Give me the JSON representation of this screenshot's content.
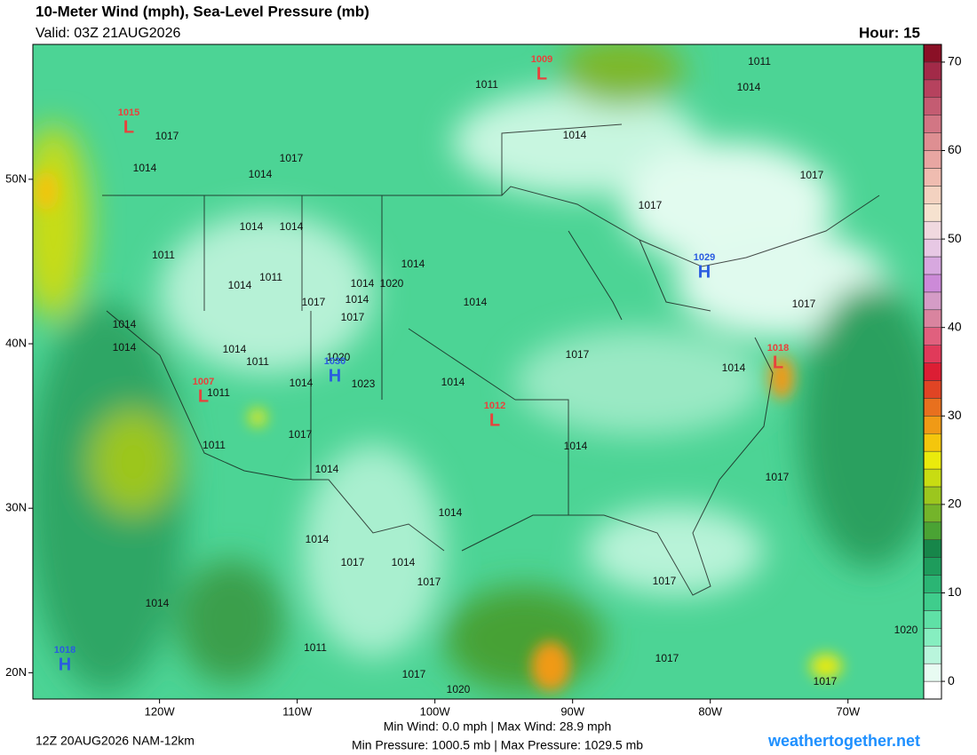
{
  "header": {
    "title": "10-Meter Wind (mph), Sea-Level Pressure (mb)",
    "valid": "Valid: 03Z 21AUG2026",
    "hour": "Hour: 15"
  },
  "map": {
    "xlim": [
      -129.2,
      -64.5
    ],
    "ylim": [
      18.4,
      58.2
    ],
    "xticks": [
      {
        "value": -120,
        "label": "120W"
      },
      {
        "value": -110,
        "label": "110W"
      },
      {
        "value": -100,
        "label": "100W"
      },
      {
        "value": -90,
        "label": "90W"
      },
      {
        "value": -80,
        "label": "80W"
      },
      {
        "value": -70,
        "label": "70W"
      }
    ],
    "yticks": [
      {
        "value": 50,
        "label": "50N"
      },
      {
        "value": 40,
        "label": "40N"
      },
      {
        "value": 30,
        "label": "30N"
      },
      {
        "value": 20,
        "label": "20N"
      }
    ],
    "centers": [
      {
        "letter": "L",
        "value": 1009,
        "color": "#e8423c"
      },
      {
        "letter": "L",
        "value": 1015,
        "color": "#e8423c"
      },
      {
        "letter": "H",
        "value": 1029,
        "color": "#2a5ce0"
      },
      {
        "letter": "L",
        "value": 1018,
        "color": "#e8423c"
      },
      {
        "letter": "H",
        "value": 1030,
        "color": "#2a5ce0"
      },
      {
        "letter": "L",
        "value": 1007,
        "color": "#e8423c"
      },
      {
        "letter": "L",
        "value": 1012,
        "color": "#e8423c"
      },
      {
        "letter": "H",
        "value": 1018,
        "color": "#2a5ce0"
      }
    ],
    "isobar_labels": [
      1011,
      1014,
      1011,
      1017,
      1014,
      1014,
      1017,
      1014,
      1017,
      1017,
      1014,
      1014,
      1011,
      1014,
      1011,
      1014,
      1014,
      1020,
      1017,
      1014,
      1014,
      1017,
      1017,
      1014,
      1014,
      1014,
      1020,
      1011,
      1017,
      1014,
      1014,
      1023,
      1011,
      1014,
      1017,
      1011,
      1014,
      1014,
      1017,
      1014,
      1014,
      1017,
      1014,
      1017,
      1017,
      1014,
      1020,
      1011,
      1017,
      1017,
      1017,
      1020
    ]
  },
  "colorbar": {
    "lim": [
      -2,
      72
    ],
    "ticks": [
      0,
      10,
      20,
      30,
      40,
      50,
      60,
      70
    ],
    "colors": [
      "#ffffff",
      "#e8fbf2",
      "#b9f5dc",
      "#86eec0",
      "#5fe0a6",
      "#3fcd8c",
      "#2bb574",
      "#1e9c5c",
      "#17864a",
      "#4aa334",
      "#74b42a",
      "#9cc61e",
      "#c8dc12",
      "#eaea0c",
      "#f4c60c",
      "#f09a16",
      "#e8701e",
      "#e04424",
      "#dc1e34",
      "#e03a5a",
      "#e0607e",
      "#d9849f",
      "#d49cc6",
      "#cc8ad8",
      "#d7a8df",
      "#e7c8e4",
      "#f0d9df",
      "#f6e2cf",
      "#f3d2c0",
      "#efbcb0",
      "#e8a6a2",
      "#de8f92",
      "#d27684",
      "#c45c72",
      "#b6425e",
      "#a22a48",
      "#8a1026"
    ]
  },
  "footer": {
    "run": "12Z 20AUG2026 NAM-12km",
    "wind": "Min Wind:  0.0 mph | Max Wind:  28.9 mph",
    "pressure": "Min Pressure: 1000.5 mb | Max Pressure: 1029.5 mb",
    "site": "weathertogether.net"
  }
}
